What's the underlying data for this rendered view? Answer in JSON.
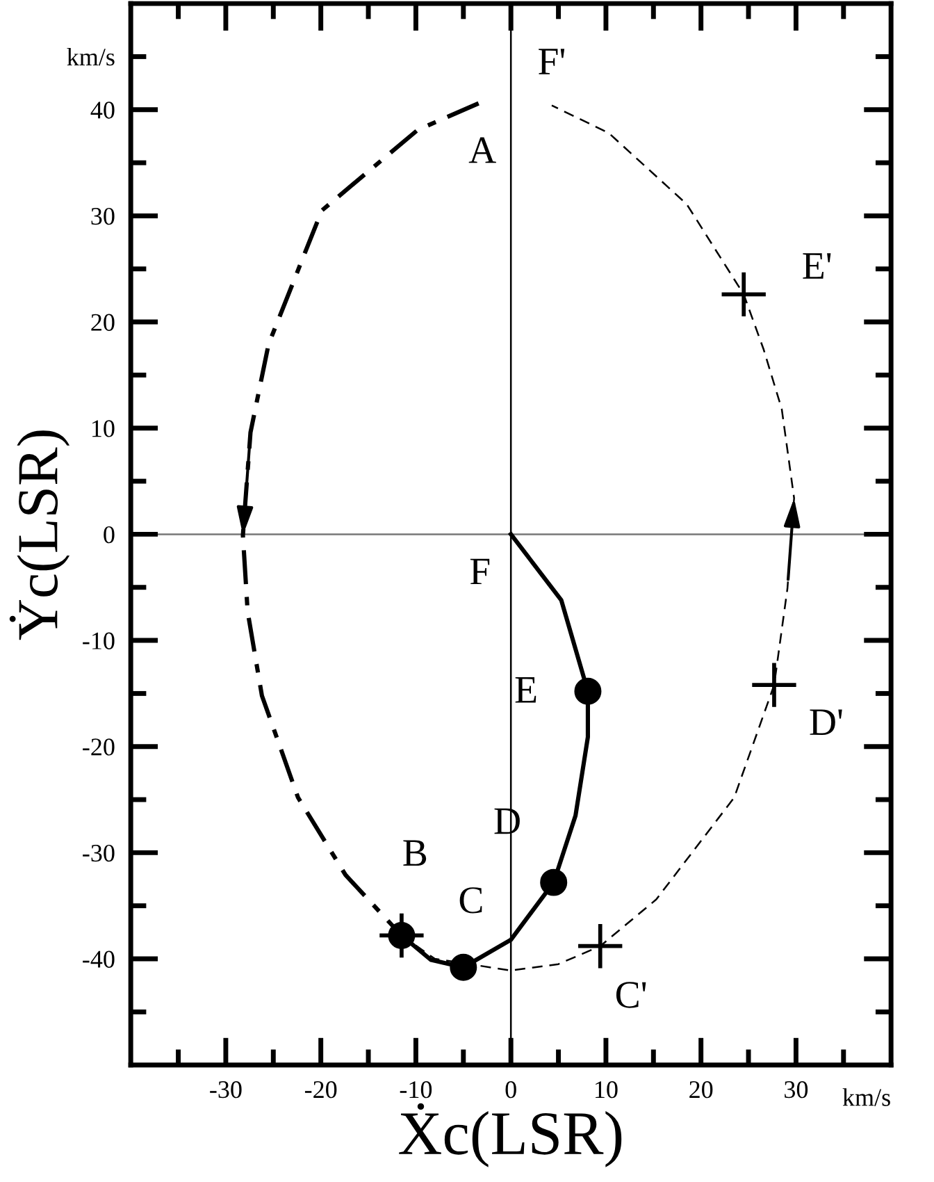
{
  "chart_data": {
    "type": "line",
    "xlabel": "Ẋc(LSR)",
    "ylabel": "Ẏc(LSR)",
    "xlim": [
      -40,
      40
    ],
    "ylim": [
      -50,
      50
    ],
    "xticks": [
      {
        "value": -35,
        "label": null
      },
      -30,
      {
        "value": -25,
        "label": null
      },
      -20,
      {
        "value": -15,
        "label": null
      },
      -10,
      {
        "value": -5,
        "label": null
      },
      0,
      {
        "value": 5,
        "label": null
      },
      10,
      {
        "value": 15,
        "label": null
      },
      20,
      {
        "value": 25,
        "label": null
      },
      30,
      {
        "value": 35,
        "label": null
      }
    ],
    "yticks": [
      {
        "value": -45,
        "label": null
      },
      -40,
      {
        "value": -35,
        "label": null
      },
      -30,
      {
        "value": -25,
        "label": null
      },
      -20,
      {
        "value": -15,
        "label": null
      },
      -10,
      {
        "value": -5,
        "label": null
      },
      0,
      {
        "value": 5,
        "label": null
      },
      10,
      {
        "value": 15,
        "label": null
      },
      20,
      {
        "value": 25,
        "label": null
      },
      30,
      {
        "value": 35,
        "label": null
      },
      40,
      {
        "value": 45,
        "label": "km/s"
      }
    ],
    "grid": false,
    "legend": false,
    "ref_lines": [
      {
        "axis": "y",
        "value": 0,
        "color": "#777777"
      },
      {
        "axis": "x",
        "value": 0,
        "color": "#000000"
      }
    ],
    "series": [
      {
        "color": "#000000",
        "line_style": "dashdot",
        "marker": "none",
        "x": [
          -3.4,
          -9.8,
          -19.9,
          -25.5,
          -27.4,
          -28.2,
          -27.7,
          -26.2,
          -22.4,
          -17.4,
          -11.5
        ],
        "values": [
          40.6,
          38.1,
          30.5,
          17.9,
          9.6,
          -0.1,
          -7.3,
          -15.2,
          -24.8,
          -32.1,
          -37.8
        ]
      },
      {
        "color": "#000000",
        "line_style": "dashed",
        "marker": "none",
        "x": [
          -11.5,
          -8,
          0,
          5,
          9.4,
          15.3,
          23.5,
          27.7,
          29.1,
          29.8,
          28.5,
          26.6,
          24.5,
          18.5,
          10.3,
          4.3
        ],
        "values": [
          -37.8,
          -40,
          -41.1,
          -40.5,
          -38.8,
          -34.4,
          -24.8,
          -14.2,
          -5.1,
          3.4,
          11.8,
          17.4,
          22.6,
          31.1,
          37.8,
          40.4
        ]
      },
      {
        "color": "#000000",
        "line_style": "solid",
        "marker": "none",
        "x": [
          0,
          5.3,
          8.1,
          8.1,
          6.8,
          4.5,
          0,
          -5.0,
          -8.4,
          -11.5
        ],
        "values": [
          0,
          -6.2,
          -14.8,
          -19.1,
          -26.5,
          -32.8,
          -38.2,
          -40.8,
          -40.1,
          -37.8
        ]
      },
      {
        "type": "scatter",
        "color": "#000000",
        "marker": "circle",
        "x": [
          8.1,
          4.5,
          -5.0,
          -11.5
        ],
        "values": [
          -14.8,
          -32.8,
          -40.8,
          -37.8
        ]
      },
      {
        "type": "scatter",
        "color": "#000000",
        "marker": "cross",
        "x": [
          -11.5,
          9.4,
          27.7,
          24.5
        ],
        "values": [
          -37.8,
          -38.8,
          -14.2,
          22.6
        ]
      }
    ],
    "annotations": [
      {
        "text": "A",
        "x": -3.4,
        "y": 40.6
      },
      {
        "text": "F'",
        "x": 4.3,
        "y": 40.4
      },
      {
        "text": "E'",
        "x": 24.5,
        "y": 22.6
      },
      {
        "text": "F",
        "x": 0,
        "y": 0
      },
      {
        "text": "E",
        "x": 8.1,
        "y": -14.8
      },
      {
        "text": "D",
        "x": 4.5,
        "y": -32.8
      },
      {
        "text": "B",
        "x": -11.5,
        "y": -37.8
      },
      {
        "text": "C",
        "x": -5.0,
        "y": -40.8
      },
      {
        "text": "D'",
        "x": 27.7,
        "y": -14.2
      },
      {
        "text": "C'",
        "x": 9.4,
        "y": -38.8
      },
      "km/s"
    ]
  }
}
